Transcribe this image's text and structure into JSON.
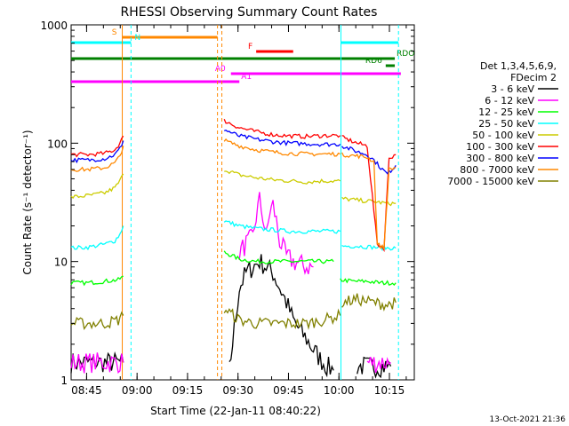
{
  "chart_data": {
    "type": "line",
    "title": "RHESSI Observing Summary Count Rates",
    "xlabel": "Start Time (22-Jan-11 08:40:22)",
    "ylabel": "Count Rate (s⁻¹ detector⁻¹)",
    "yscale": "log",
    "ylim": [
      1,
      1000
    ],
    "xlim_minutes": [
      0,
      102
    ],
    "x_ticks": [
      {
        "label": "08:45",
        "minute": 4.6
      },
      {
        "label": "09:00",
        "minute": 19.6
      },
      {
        "label": "09:15",
        "minute": 34.6
      },
      {
        "label": "09:30",
        "minute": 49.6
      },
      {
        "label": "09:45",
        "minute": 64.6
      },
      {
        "label": "10:00",
        "minute": 79.6
      },
      {
        "label": "10:15",
        "minute": 94.6
      }
    ],
    "y_ticks": [
      {
        "label": "1",
        "value": 1
      },
      {
        "label": "10",
        "value": 10
      },
      {
        "label": "100",
        "value": 100
      },
      {
        "label": "1000",
        "value": 1000
      }
    ],
    "legend_title": [
      "Det 1,3,4,5,6,9,",
      "FDecim 2"
    ],
    "series": [
      {
        "name": "3 - 6 keV",
        "color": "#000000",
        "segments": [
          {
            "x": [
              0,
              5,
              10,
              14,
              15.5
            ],
            "y": [
              1.4,
              1.4,
              1.4,
              1.4,
              1.4
            ]
          },
          {
            "x": [
              47,
              50,
              52,
              54,
              56,
              58,
              60,
              62,
              64,
              66,
              68,
              70,
              72,
              74,
              76,
              78
            ],
            "y": [
              1.2,
              6,
              8,
              9,
              10,
              9,
              8,
              6,
              4.5,
              3.2,
              2.6,
              2.2,
              1.8,
              1.5,
              1.3,
              1.2
            ]
          },
          {
            "x": [
              85,
              88,
              92,
              95
            ],
            "y": [
              1.3,
              1.3,
              1.3,
              1.3
            ]
          }
        ]
      },
      {
        "name": "6 - 12 keV",
        "color": "#ff00ff",
        "segments": [
          {
            "x": [
              0,
              5,
              10,
              14,
              15.5
            ],
            "y": [
              1.4,
              1.4,
              1.4,
              1.4,
              1.4
            ]
          },
          {
            "x": [
              50,
              52,
              54,
              55,
              56,
              57,
              58,
              59,
              60,
              61,
              62,
              64,
              66,
              68,
              70,
              72
            ],
            "y": [
              12,
              14,
              16,
              24,
              33,
              24,
              16,
              26,
              30,
              22,
              15,
              11,
              10,
              9.5,
              9,
              9
            ]
          },
          {
            "x": [
              88,
              92,
              95
            ],
            "y": [
              1.4,
              1.4,
              1.4
            ]
          }
        ]
      },
      {
        "name": "12 - 25 keV",
        "color": "#00ff00",
        "segments": [
          {
            "x": [
              0,
              5,
              10,
              14,
              15.5
            ],
            "y": [
              6.6,
              6.6,
              6.8,
              7,
              7.5
            ]
          },
          {
            "x": [
              45.5,
              50,
              55,
              60,
              65,
              70,
              75,
              78
            ],
            "y": [
              12,
              10.5,
              10,
              10,
              10,
              10,
              10,
              10
            ]
          },
          {
            "x": [
              80,
              84,
              88,
              92,
              95,
              96.5
            ],
            "y": [
              7,
              6.8,
              6.8,
              6.6,
              6.6,
              6.6
            ]
          }
        ]
      },
      {
        "name": "25 - 50 keV",
        "color": "#00ffff",
        "segments": [
          {
            "x": [
              0,
              5,
              10,
              13,
              14.5,
              15.5
            ],
            "y": [
              13,
              13.2,
              14,
              15,
              17,
              20
            ]
          },
          {
            "x": [
              45.5,
              50,
              55,
              60,
              65,
              70,
              75,
              80
            ],
            "y": [
              22,
              20,
              19,
              18.5,
              18,
              18,
              18,
              18
            ]
          },
          {
            "x": [
              80.5,
              85,
              90,
              94,
              96.5
            ],
            "y": [
              13.5,
              13.5,
              13.2,
              13,
              13
            ]
          }
        ]
      },
      {
        "name": "50 - 100 keV",
        "color": "#cccc00",
        "segments": [
          {
            "x": [
              0,
              5,
              10,
              13,
              14.5,
              15.5
            ],
            "y": [
              35,
              36,
              38,
              42,
              48,
              55
            ]
          },
          {
            "x": [
              45.5,
              50,
              55,
              60,
              65,
              70,
              75,
              80
            ],
            "y": [
              60,
              54,
              51,
              49,
              48,
              47,
              48,
              48
            ]
          },
          {
            "x": [
              80.5,
              85,
              90,
              94,
              96.5
            ],
            "y": [
              34,
              33,
              32,
              31,
              31
            ]
          }
        ]
      },
      {
        "name": "100 - 300 keV",
        "color": "#ff0000",
        "segments": [
          {
            "x": [
              0,
              5,
              10,
              13,
              14.5,
              15.5
            ],
            "y": [
              80,
              80,
              82,
              88,
              100,
              115
            ]
          },
          {
            "x": [
              45.5,
              50,
              55,
              60,
              65,
              70,
              75,
              80
            ],
            "y": [
              155,
              135,
              125,
              118,
              115,
              114,
              116,
              116
            ]
          },
          {
            "x": [
              80.5,
              85,
              88,
              91,
              93,
              94.5,
              96.5
            ],
            "y": [
              112,
              100,
              95,
              14,
              13,
              75,
              80
            ]
          }
        ]
      },
      {
        "name": "300 - 800 keV",
        "color": "#0000ff",
        "segments": [
          {
            "x": [
              0,
              5,
              10,
              13,
              14.5,
              15.5
            ],
            "y": [
              72,
              72,
              74,
              80,
              90,
              105
            ]
          },
          {
            "x": [
              45.5,
              50,
              55,
              60,
              65,
              70,
              75,
              80
            ],
            "y": [
              130,
              115,
              108,
              103,
              100,
              99,
              98,
              98
            ]
          },
          {
            "x": [
              80.5,
              85,
              88,
              90,
              92,
              94,
              96.5
            ],
            "y": [
              95,
              85,
              80,
              72,
              62,
              55,
              65
            ]
          }
        ]
      },
      {
        "name": "800 - 7000 keV",
        "color": "#ff8800",
        "segments": [
          {
            "x": [
              0,
              5,
              10,
              13,
              14.5,
              15.5
            ],
            "y": [
              60,
              60,
              62,
              68,
              78,
              95
            ]
          },
          {
            "x": [
              45.5,
              50,
              55,
              60,
              65,
              70,
              75,
              80
            ],
            "y": [
              105,
              95,
              88,
              84,
              82,
              81,
              81,
              81
            ]
          },
          {
            "x": [
              80.5,
              85,
              88,
              90,
              91,
              93,
              94.5,
              96.5
            ],
            "y": [
              80,
              78,
              76,
              70,
              14,
              13,
              60,
              62
            ]
          }
        ]
      },
      {
        "name": "7000 - 15000 keV",
        "color": "#808000",
        "segments": [
          {
            "x": [
              0,
              5,
              10,
              14,
              15.5
            ],
            "y": [
              3,
              3,
              3,
              3.2,
              3.5
            ]
          },
          {
            "x": [
              45.5,
              50,
              55,
              60,
              65,
              70,
              75,
              80
            ],
            "y": [
              4,
              3.2,
              3,
              3,
              3,
              3,
              3.2,
              3.5
            ]
          },
          {
            "x": [
              80.5,
              85,
              90,
              94,
              96.5
            ],
            "y": [
              4.5,
              4.8,
              4.5,
              4.3,
              4.5
            ]
          }
        ]
      }
    ],
    "flag_bars": [
      {
        "label": "S",
        "color": "#ff8800",
        "x0": 15.2,
        "x1": 43.5,
        "y_rank": 0
      },
      {
        "label": "N",
        "color": "#00ffff",
        "x0": 0,
        "x1": 17.8,
        "y_rank": 1
      },
      {
        "label": "N",
        "color": "#00ffff",
        "x0": 80.2,
        "x1": 97.3,
        "y_rank": 1
      },
      {
        "label": "F",
        "color": "#ff0000",
        "x0": 55,
        "x1": 66,
        "y_rank": 2
      },
      {
        "label": "RDO",
        "color": "#008000",
        "x0": 0,
        "x1": 96.2,
        "y_rank": 3
      },
      {
        "label": "RD6",
        "color": "#008000",
        "x0": 93.5,
        "x1": 96.2,
        "y_rank": 4
      },
      {
        "label": "A0",
        "color": "#ff00ff",
        "x0": 47.5,
        "x1": 98,
        "y_rank": 5
      },
      {
        "label": "A1",
        "color": "#ff00ff",
        "x0": 0,
        "x1": 50,
        "y_rank": 6
      }
    ],
    "vertical_markers": [
      {
        "color": "#ff8800",
        "minute": 15.2,
        "dashed": false
      },
      {
        "color": "#00ffff",
        "minute": 17.8,
        "dashed": true
      },
      {
        "color": "#ff8800",
        "minute": 43.5,
        "dashed": true
      },
      {
        "color": "#ff8800",
        "minute": 44.8,
        "dashed": true
      },
      {
        "color": "#00ffff",
        "minute": 80.2,
        "dashed": false
      },
      {
        "color": "#00ffff",
        "minute": 97.3,
        "dashed": true
      }
    ],
    "grid": false,
    "legend_position": "right"
  },
  "footer": {
    "timestamp": "13-Oct-2021 21:36"
  }
}
